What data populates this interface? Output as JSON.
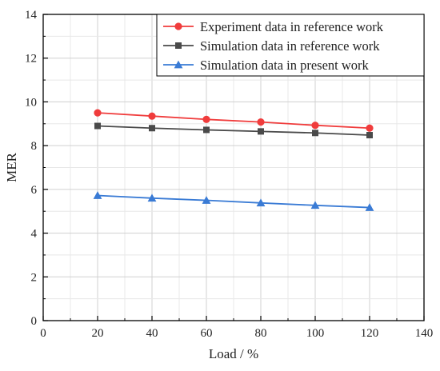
{
  "chart_data": {
    "type": "line",
    "xlabel": "Load / %",
    "ylabel": "MER",
    "xlim": [
      0,
      140
    ],
    "ylim": [
      0,
      14
    ],
    "xticks": [
      0,
      20,
      40,
      60,
      80,
      100,
      120,
      140
    ],
    "yticks": [
      0,
      2,
      4,
      6,
      8,
      10,
      12,
      14
    ],
    "grid": true,
    "legend_position": "top-right",
    "x": [
      20,
      40,
      60,
      80,
      100,
      120
    ],
    "series": [
      {
        "name": "Experiment data in reference work",
        "values": [
          9.5,
          9.35,
          9.2,
          9.08,
          8.93,
          8.8
        ],
        "color": "#f03c3c",
        "marker": "circle"
      },
      {
        "name": "Simulation data in reference work",
        "values": [
          8.9,
          8.8,
          8.72,
          8.65,
          8.58,
          8.48
        ],
        "color": "#4a4a4a",
        "marker": "square"
      },
      {
        "name": "Simulation data in present work",
        "values": [
          5.72,
          5.6,
          5.5,
          5.38,
          5.27,
          5.17
        ],
        "color": "#3a7bd5",
        "marker": "triangle"
      }
    ]
  }
}
